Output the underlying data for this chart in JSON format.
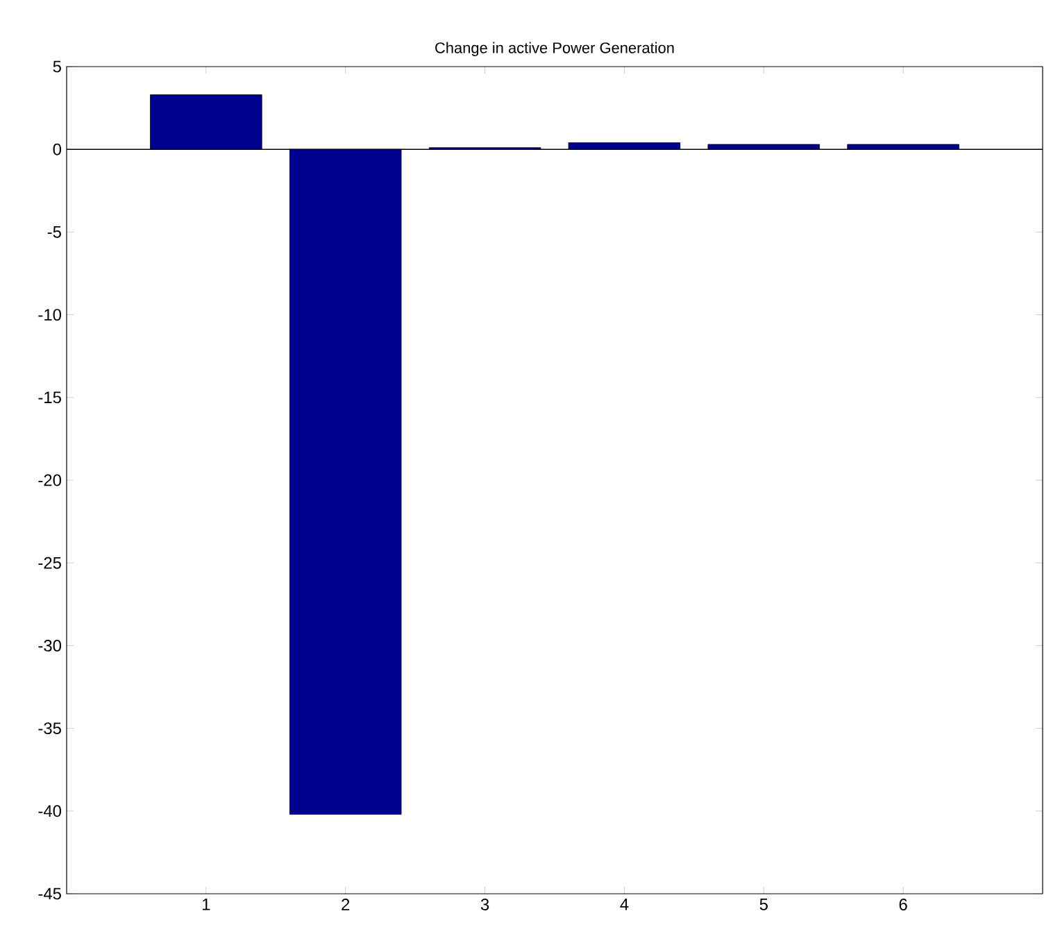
{
  "chart_data": {
    "type": "bar",
    "title": "Change in active Power Generation",
    "x": [
      1,
      2,
      3,
      4,
      5,
      6
    ],
    "values": [
      3.3,
      -40.2,
      0.1,
      0.4,
      0.3,
      0.3
    ],
    "ref_lines": [
      {
        "axis": "y",
        "value": 0,
        "color": "#000000"
      }
    ],
    "color": "#00008f",
    "xlim": [
      0,
      7
    ],
    "xticks": [
      1,
      2,
      3,
      4,
      5,
      6
    ],
    "ylim": [
      -45,
      5
    ],
    "yticks": [
      -45,
      -40,
      -35,
      -30,
      -25,
      -20,
      -15,
      -10,
      -5,
      0,
      5
    ],
    "grid": false
  }
}
